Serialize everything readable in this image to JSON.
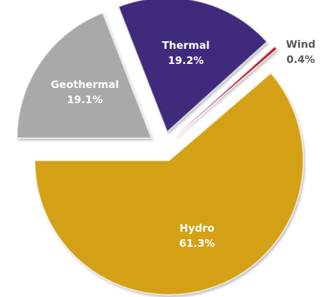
{
  "chart_data": {
    "type": "pie",
    "categories": [
      "Thermal",
      "Wind",
      "Hydro",
      "Geothermal"
    ],
    "values": [
      19.2,
      0.4,
      61.3,
      19.1
    ],
    "value_labels": [
      "19.2%",
      "0.4%",
      "61.3%",
      "19.1%"
    ],
    "colors": [
      "#3f2b7c",
      "#b3202a",
      "#d4a012",
      "#a9a9a9"
    ],
    "exploded": true
  }
}
